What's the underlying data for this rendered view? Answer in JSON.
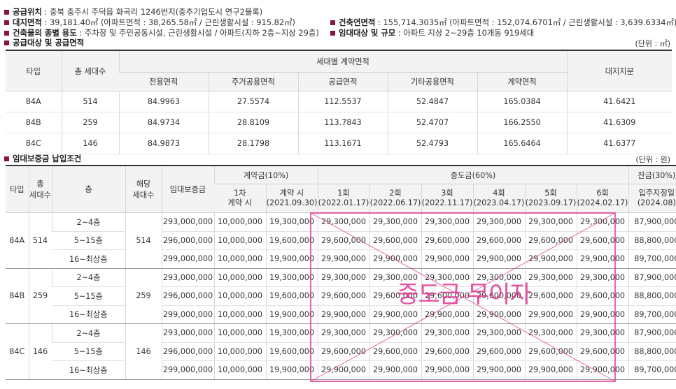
{
  "info": {
    "location": {
      "label": "공급위치",
      "value": " : 충북 충주시 주덕읍 화곡리 1246번지(충추기업도시 연구2블록)"
    },
    "land_area": {
      "label": "대지면적",
      "value": " : 39,181.40㎡ (아파트면적 : 38,265.58㎡ / 근린생활시설 : 915.82㎡)"
    },
    "usage": {
      "label": "건축물의 종별 용도",
      "value": " : 주차장 및 주민공동시설, 근린생활시설 / 아파트(지하 2층~지상 29층)"
    },
    "supply_title": "공급대상 및 공급면적",
    "floor_area": {
      "label": "건축연면적",
      "value": " : 155,714.3035㎡ (아파트면적 : 152,074.6701㎡ / 근린생활시설 : 3,639.6334㎡)"
    },
    "scale": {
      "label": "임대대상 및 규모",
      "value": " : 아파트 지상 2~29층 10개동 919세대"
    }
  },
  "area_table": {
    "unit": "(단위 : ㎡)",
    "headers": {
      "type": "타입",
      "households": "총 세대수",
      "group": "세대별 계약면적",
      "land_share": "대지지분",
      "sub": [
        "전용면적",
        "주거공용면적",
        "공급면적",
        "기타공용면적",
        "계약면적"
      ]
    },
    "rows": [
      [
        "84A",
        "514",
        "84.9963",
        "27.5574",
        "112.5537",
        "52.4847",
        "165.0384",
        "41.6421"
      ],
      [
        "84B",
        "259",
        "84.9734",
        "28.8109",
        "113.7843",
        "52.4707",
        "166.2550",
        "41.6309"
      ],
      [
        "84C",
        "146",
        "84.9873",
        "28.1798",
        "113.1671",
        "52.4793",
        "165.6464",
        "41.6377"
      ]
    ]
  },
  "deposit_title": "임대보증금 납입조건",
  "deposit_table": {
    "unit": "(단위 : 원)",
    "headers": {
      "type": "타입",
      "households": [
        "총",
        "세대수"
      ],
      "floor": "층",
      "floor_households": [
        "해당",
        "세대수"
      ],
      "deposit": "임대보증금",
      "contract": "계약금(10%)",
      "middle": "중도금(60%)",
      "balance": "잔금(30%)",
      "contract_sub": [
        [
          "1차",
          "계약 시"
        ],
        [
          "계약 시",
          "(2021.09.30)"
        ]
      ],
      "middle_sub": [
        [
          "1회",
          "(2022.01.17)"
        ],
        [
          "2회",
          "(2022.06.17)"
        ],
        [
          "3회",
          "(2022.11.17)"
        ],
        [
          "4회",
          "(2023.04.17)"
        ],
        [
          "5회",
          "(2023.09.17)"
        ],
        [
          "6회",
          "(2024.02.17)"
        ]
      ],
      "balance_sub": [
        "입주지정일",
        "(2024.08)"
      ]
    },
    "groups": [
      {
        "type": "84A",
        "households": "514",
        "floor_households": "514",
        "rows": [
          [
            "2~4층",
            "293,000,000",
            "10,000,000",
            "19,300,000",
            "29,300,000",
            "29,300,000",
            "29,300,000",
            "29,300,000",
            "29,300,000",
            "29,300,000",
            "87,900,000"
          ],
          [
            "5~15층",
            "296,000,000",
            "10,000,000",
            "19,600,000",
            "29,600,000",
            "29,600,000",
            "29,600,000",
            "29,600,000",
            "29,600,000",
            "29,600,000",
            "88,800,000"
          ],
          [
            "16~최상층",
            "299,000,000",
            "10,000,000",
            "19,900,000",
            "29,900,000",
            "29,900,000",
            "29,900,000",
            "29,900,000",
            "29,900,000",
            "29,900,000",
            "89,700,000"
          ]
        ]
      },
      {
        "type": "84B",
        "households": "259",
        "floor_households": "259",
        "rows": [
          [
            "2~4층",
            "293,000,000",
            "10,000,000",
            "19,300,000",
            "29,300,000",
            "29,300,000",
            "29,300,000",
            "29,300,000",
            "29,300,000",
            "29,300,000",
            "87,900,000"
          ],
          [
            "5~15층",
            "296,000,000",
            "10,000,000",
            "19,600,000",
            "29,600,000",
            "29,600,000",
            "29,600,000",
            "29,600,000",
            "29,600,000",
            "29,600,000",
            "88,800,000"
          ],
          [
            "16~최상층",
            "299,000,000",
            "10,000,000",
            "19,900,000",
            "29,900,000",
            "29,900,000",
            "29,900,000",
            "29,900,000",
            "29,900,000",
            "29,900,000",
            "89,700,000"
          ]
        ]
      },
      {
        "type": "84C",
        "households": "146",
        "floor_households": "146",
        "rows": [
          [
            "2~4층",
            "293,000,000",
            "10,000,000",
            "19,300,000",
            "29,300,000",
            "29,300,000",
            "29,300,000",
            "29,300,000",
            "29,300,000",
            "29,300,000",
            "87,900,000"
          ],
          [
            "5~15층",
            "296,000,000",
            "10,000,000",
            "19,600,000",
            "29,600,000",
            "29,600,000",
            "29,600,000",
            "29,600,000",
            "29,600,000",
            "29,600,000",
            "88,800,000"
          ],
          [
            "16~최상층",
            "299,000,000",
            "10,000,000",
            "19,900,000",
            "29,900,000",
            "29,900,000",
            "29,900,000",
            "29,900,000",
            "29,900,000",
            "29,900,000",
            "89,700,000"
          ]
        ]
      }
    ]
  },
  "overlay": {
    "text": "중도금 무이자",
    "color": "#e0348f"
  }
}
